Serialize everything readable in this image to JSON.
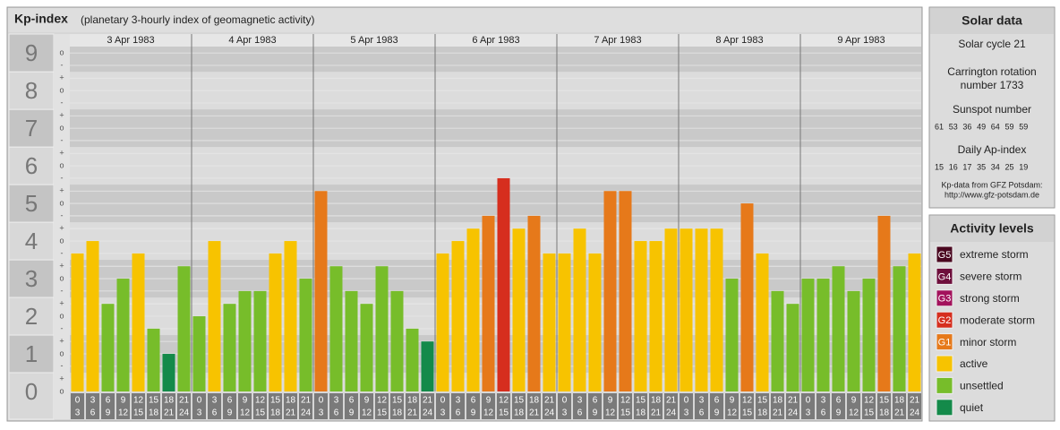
{
  "chart_data": {
    "type": "bar",
    "title": "Kp-index",
    "subtitle": "(planetary 3-hourly index of geomagnetic activity)",
    "ylim": [
      0,
      9.17
    ],
    "yticks": [
      0,
      1,
      2,
      3,
      4,
      5,
      6,
      7,
      8,
      9
    ],
    "minor_ticks": [
      {
        "value": 0,
        "label": "o"
      },
      {
        "value": 0.33,
        "label": "+"
      },
      {
        "value": 0.67,
        "label": "-"
      },
      {
        "value": 1,
        "label": "o"
      },
      {
        "value": 1.33,
        "label": "+"
      },
      {
        "value": 1.67,
        "label": "-"
      },
      {
        "value": 2,
        "label": "o"
      },
      {
        "value": 2.33,
        "label": "+"
      },
      {
        "value": 2.67,
        "label": "-"
      },
      {
        "value": 3,
        "label": "o"
      },
      {
        "value": 3.33,
        "label": "+"
      },
      {
        "value": 3.67,
        "label": "-"
      },
      {
        "value": 4,
        "label": "o"
      },
      {
        "value": 4.33,
        "label": "+"
      },
      {
        "value": 4.67,
        "label": "-"
      },
      {
        "value": 5,
        "label": "o"
      },
      {
        "value": 5.33,
        "label": "+"
      },
      {
        "value": 5.67,
        "label": "-"
      },
      {
        "value": 6,
        "label": "o"
      },
      {
        "value": 6.33,
        "label": "+"
      },
      {
        "value": 6.67,
        "label": "-"
      },
      {
        "value": 7,
        "label": "o"
      },
      {
        "value": 7.33,
        "label": "+"
      },
      {
        "value": 7.67,
        "label": "-"
      },
      {
        "value": 8,
        "label": "o"
      },
      {
        "value": 8.33,
        "label": "+"
      },
      {
        "value": 8.67,
        "label": "-"
      },
      {
        "value": 9,
        "label": "o"
      }
    ],
    "hour_starts": [
      "0",
      "3",
      "6",
      "9",
      "12",
      "15",
      "18",
      "21"
    ],
    "hour_ends": [
      "3",
      "6",
      "9",
      "12",
      "15",
      "18",
      "21",
      "24"
    ],
    "series": [
      {
        "name": "3 Apr 1983",
        "values": [
          3.67,
          4,
          2.33,
          3,
          3.67,
          1.67,
          1,
          3.33
        ],
        "colors": [
          "#f7c300",
          "#f7c300",
          "#77bd2a",
          "#77bd2a",
          "#f7c300",
          "#77bd2a",
          "#148a4a",
          "#77bd2a"
        ]
      },
      {
        "name": "4 Apr 1983",
        "values": [
          2,
          4,
          2.33,
          2.67,
          2.67,
          3.67,
          4,
          3
        ],
        "colors": [
          "#77bd2a",
          "#f7c300",
          "#77bd2a",
          "#77bd2a",
          "#77bd2a",
          "#f7c300",
          "#f7c300",
          "#77bd2a"
        ]
      },
      {
        "name": "5 Apr 1983",
        "values": [
          5.33,
          3.33,
          2.67,
          2.33,
          3.33,
          2.67,
          1.67,
          1.33
        ],
        "colors": [
          "#e6791a",
          "#77bd2a",
          "#77bd2a",
          "#77bd2a",
          "#77bd2a",
          "#77bd2a",
          "#77bd2a",
          "#148a4a"
        ]
      },
      {
        "name": "6 Apr 1983",
        "values": [
          3.67,
          4,
          4.33,
          4.67,
          5.67,
          4.33,
          4.67,
          3.67
        ],
        "colors": [
          "#f7c300",
          "#f7c300",
          "#f7c300",
          "#e6791a",
          "#d62e1e",
          "#f7c300",
          "#e6791a",
          "#f7c300"
        ]
      },
      {
        "name": "7 Apr 1983",
        "values": [
          3.67,
          4.33,
          3.67,
          5.33,
          5.33,
          4,
          4,
          4.33
        ],
        "colors": [
          "#f7c300",
          "#f7c300",
          "#f7c300",
          "#e6791a",
          "#e6791a",
          "#f7c300",
          "#f7c300",
          "#f7c300"
        ]
      },
      {
        "name": "8 Apr 1983",
        "values": [
          4.33,
          4.33,
          4.33,
          3,
          5,
          3.67,
          2.67,
          2.33
        ],
        "colors": [
          "#f7c300",
          "#f7c300",
          "#f7c300",
          "#77bd2a",
          "#e6791a",
          "#f7c300",
          "#77bd2a",
          "#77bd2a"
        ]
      },
      {
        "name": "9 Apr 1983",
        "values": [
          3,
          3,
          3.33,
          2.67,
          3,
          4.67,
          3.33,
          3.67
        ],
        "colors": [
          "#77bd2a",
          "#77bd2a",
          "#77bd2a",
          "#77bd2a",
          "#77bd2a",
          "#e6791a",
          "#77bd2a",
          "#f7c300"
        ]
      }
    ]
  },
  "solar_data": {
    "title": "Solar data",
    "cycle": "Solar cycle 21",
    "carrington": [
      "Carrington rotation",
      "number 1733"
    ],
    "sunspot_title": "Sunspot number",
    "sunspots": [
      61,
      53,
      36,
      49,
      64,
      59,
      59
    ],
    "ap_title": "Daily Ap-index",
    "ap": [
      15,
      16,
      17,
      35,
      34,
      25,
      19
    ],
    "source": [
      "Kp-data from GFZ Potsdam:",
      "http://www.gfz-potsdam.de"
    ]
  },
  "activity_levels": {
    "title": "Activity levels",
    "levels": [
      {
        "code": "G5",
        "name": "extreme storm",
        "color": "#4a0820"
      },
      {
        "code": "G4",
        "name": "severe storm",
        "color": "#6e0f3c"
      },
      {
        "code": "G3",
        "name": "strong storm",
        "color": "#a3125c"
      },
      {
        "code": "G2",
        "name": "moderate storm",
        "color": "#d62e1e"
      },
      {
        "code": "G1",
        "name": "minor storm",
        "color": "#e6791a"
      },
      {
        "name": "active",
        "color": "#f7c300"
      },
      {
        "name": "unsettled",
        "color": "#77bd2a"
      },
      {
        "name": "quiet",
        "color": "#148a4a"
      }
    ]
  }
}
